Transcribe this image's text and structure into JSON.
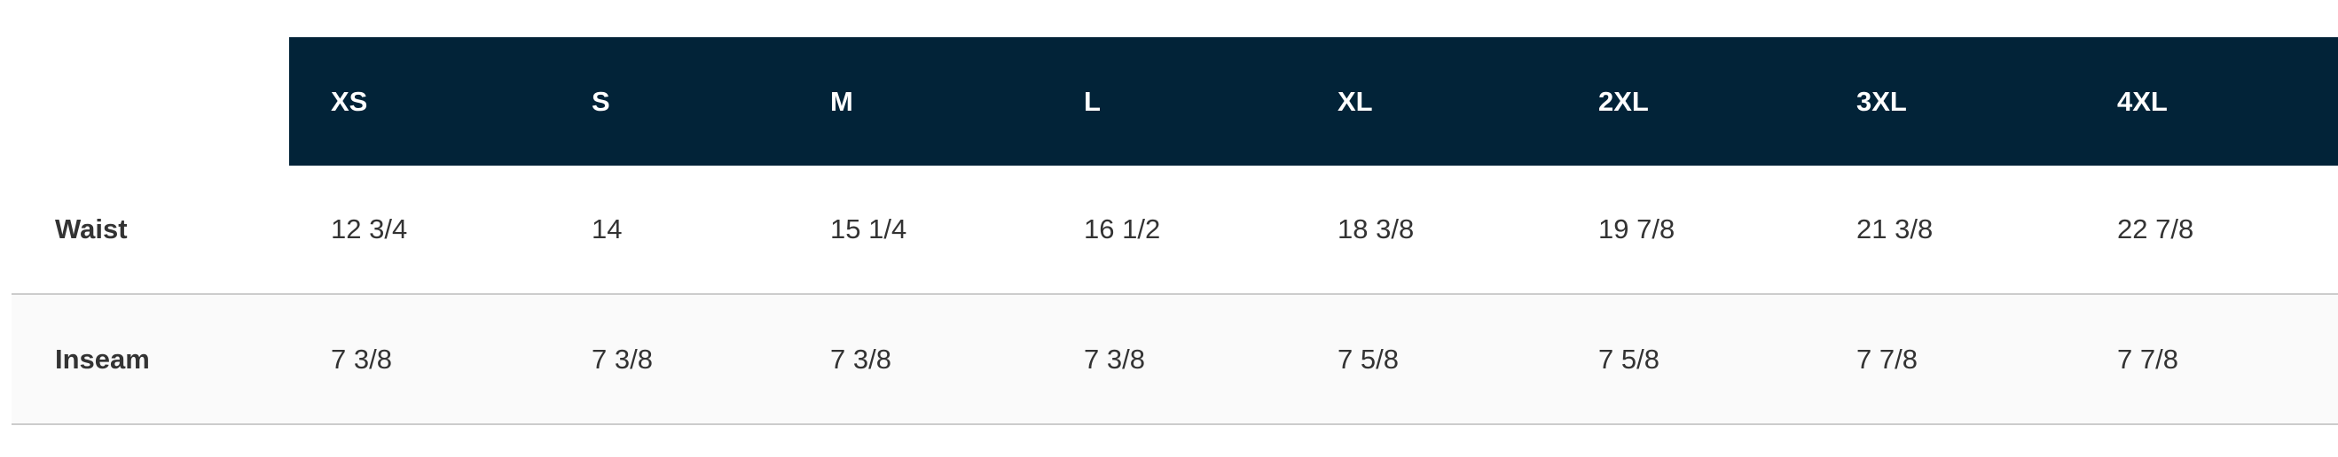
{
  "table": {
    "header_bg": "#022338",
    "columns": [
      "XS",
      "S",
      "M",
      "L",
      "XL",
      "2XL",
      "3XL",
      "4XL"
    ],
    "rows": [
      {
        "label": "Waist",
        "values": [
          "12 3/4",
          "14",
          "15 1/4",
          "16 1/2",
          "18 3/8",
          "19 7/8",
          "21 3/8",
          "22 7/8"
        ]
      },
      {
        "label": "Inseam",
        "values": [
          "7 3/8",
          "7 3/8",
          "7 3/8",
          "7 3/8",
          "7 5/8",
          "7 5/8",
          "7 7/8",
          "7 7/8"
        ]
      }
    ]
  }
}
